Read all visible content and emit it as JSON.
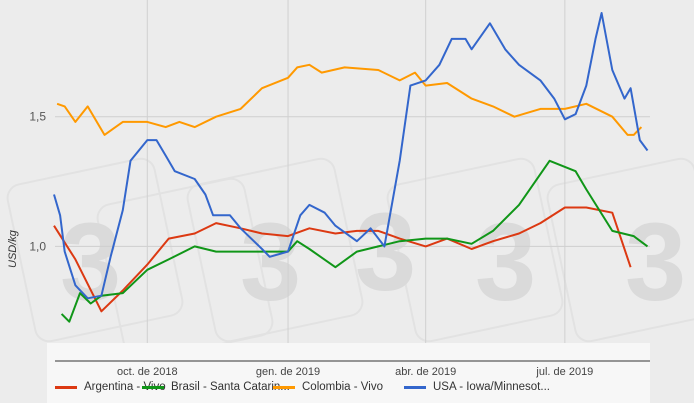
{
  "chart_data": {
    "type": "line",
    "title": "",
    "xlabel": "",
    "ylabel": "USD/kg",
    "xlim": [
      "2018-08-01",
      "2019-08-25"
    ],
    "ylim": [
      0.62,
      1.95
    ],
    "yticks": [
      {
        "value": 1.0,
        "label": "1,0"
      },
      {
        "value": 1.5,
        "label": "1,5"
      }
    ],
    "xticks": [
      {
        "date": "2018-10-01",
        "label": "oct. de 2018"
      },
      {
        "date": "2019-01-01",
        "label": "gen. de 2019"
      },
      {
        "date": "2019-04-01",
        "label": "abr. de 2019"
      },
      {
        "date": "2019-07-01",
        "label": "jul. de 2019"
      }
    ],
    "grid": true,
    "legend_position": "bottom",
    "series": [
      {
        "name": "Argentina - Vivo",
        "color": "#dc3912",
        "x": [
          "2018-08-01",
          "2018-08-15",
          "2018-09-01",
          "2018-09-15",
          "2018-10-01",
          "2018-10-15",
          "2018-11-01",
          "2018-11-15",
          "2018-12-01",
          "2018-12-15",
          "2019-01-01",
          "2019-01-15",
          "2019-02-01",
          "2019-02-15",
          "2019-03-01",
          "2019-03-15",
          "2019-04-01",
          "2019-04-15",
          "2019-05-01",
          "2019-05-15",
          "2019-06-01",
          "2019-06-15",
          "2019-07-01",
          "2019-07-15",
          "2019-08-01",
          "2019-08-13"
        ],
        "y": [
          1.08,
          0.95,
          0.75,
          0.83,
          0.93,
          1.03,
          1.05,
          1.09,
          1.07,
          1.05,
          1.04,
          1.07,
          1.05,
          1.06,
          1.06,
          1.03,
          1.0,
          1.03,
          0.99,
          1.02,
          1.05,
          1.09,
          1.15,
          1.15,
          1.13,
          0.92
        ]
      },
      {
        "name": "Brasil - Santa Catarin...",
        "color": "#109618",
        "x": [
          "2018-08-06",
          "2018-08-11",
          "2018-08-18",
          "2018-08-25",
          "2018-09-01",
          "2018-09-15",
          "2018-10-01",
          "2018-10-15",
          "2018-11-01",
          "2018-11-15",
          "2018-12-01",
          "2018-12-15",
          "2019-01-01",
          "2019-01-07",
          "2019-01-15",
          "2019-02-01",
          "2019-02-15",
          "2019-03-01",
          "2019-03-15",
          "2019-04-01",
          "2019-04-15",
          "2019-05-01",
          "2019-05-15",
          "2019-06-01",
          "2019-06-21",
          "2019-07-08",
          "2019-07-15",
          "2019-08-01",
          "2019-08-15",
          "2019-08-24"
        ],
        "y": [
          0.74,
          0.71,
          0.82,
          0.78,
          0.81,
          0.82,
          0.91,
          0.95,
          1.0,
          0.98,
          0.98,
          0.98,
          0.98,
          1.02,
          0.99,
          0.92,
          0.98,
          1.0,
          1.02,
          1.03,
          1.03,
          1.01,
          1.06,
          1.16,
          1.33,
          1.29,
          1.22,
          1.06,
          1.04,
          1.0
        ]
      },
      {
        "name": "Colombia - Vivo",
        "color": "#ff9900",
        "x": [
          "2018-08-03",
          "2018-08-08",
          "2018-08-15",
          "2018-08-23",
          "2018-09-03",
          "2018-09-15",
          "2018-10-01",
          "2018-10-13",
          "2018-10-22",
          "2018-11-01",
          "2018-11-15",
          "2018-12-01",
          "2018-12-15",
          "2019-01-01",
          "2019-01-07",
          "2019-01-15",
          "2019-01-23",
          "2019-02-07",
          "2019-03-01",
          "2019-03-15",
          "2019-03-25",
          "2019-04-01",
          "2019-04-15",
          "2019-05-01",
          "2019-05-15",
          "2019-05-29",
          "2019-06-15",
          "2019-07-01",
          "2019-07-15",
          "2019-08-01",
          "2019-08-11",
          "2019-08-15",
          "2019-08-20"
        ],
        "y": [
          1.55,
          1.54,
          1.48,
          1.54,
          1.43,
          1.48,
          1.48,
          1.46,
          1.48,
          1.46,
          1.5,
          1.53,
          1.61,
          1.65,
          1.69,
          1.7,
          1.67,
          1.69,
          1.68,
          1.64,
          1.67,
          1.62,
          1.63,
          1.57,
          1.54,
          1.5,
          1.53,
          1.53,
          1.55,
          1.5,
          1.43,
          1.43,
          1.46
        ]
      },
      {
        "name": "USA - Iowa/Minnesot...",
        "color": "#3366cc",
        "x": [
          "2018-08-01",
          "2018-08-05",
          "2018-08-08",
          "2018-08-15",
          "2018-08-23",
          "2018-09-01",
          "2018-09-07",
          "2018-09-15",
          "2018-09-20",
          "2018-10-01",
          "2018-10-07",
          "2018-10-13",
          "2018-10-19",
          "2018-11-01",
          "2018-11-08",
          "2018-11-13",
          "2018-11-24",
          "2018-12-01",
          "2018-12-15",
          "2018-12-20",
          "2019-01-01",
          "2019-01-09",
          "2019-01-15",
          "2019-01-25",
          "2019-02-01",
          "2019-02-15",
          "2019-02-24",
          "2019-03-05",
          "2019-03-15",
          "2019-03-22",
          "2019-04-01",
          "2019-04-10",
          "2019-04-18",
          "2019-04-27",
          "2019-05-01",
          "2019-05-13",
          "2019-05-23",
          "2019-06-01",
          "2019-06-15",
          "2019-06-24",
          "2019-07-01",
          "2019-07-08",
          "2019-07-15",
          "2019-07-21",
          "2019-07-25",
          "2019-08-01",
          "2019-08-09",
          "2019-08-13",
          "2019-08-19",
          "2019-08-24"
        ],
        "y": [
          1.2,
          1.12,
          0.98,
          0.85,
          0.8,
          0.81,
          0.96,
          1.14,
          1.33,
          1.41,
          1.41,
          1.35,
          1.29,
          1.26,
          1.2,
          1.12,
          1.12,
          1.07,
          0.99,
          0.96,
          0.98,
          1.12,
          1.16,
          1.13,
          1.08,
          1.02,
          1.07,
          1.0,
          1.33,
          1.62,
          1.64,
          1.7,
          1.8,
          1.8,
          1.76,
          1.86,
          1.76,
          1.7,
          1.64,
          1.57,
          1.49,
          1.51,
          1.62,
          1.8,
          1.9,
          1.68,
          1.57,
          1.61,
          1.41,
          1.37
        ]
      }
    ]
  }
}
